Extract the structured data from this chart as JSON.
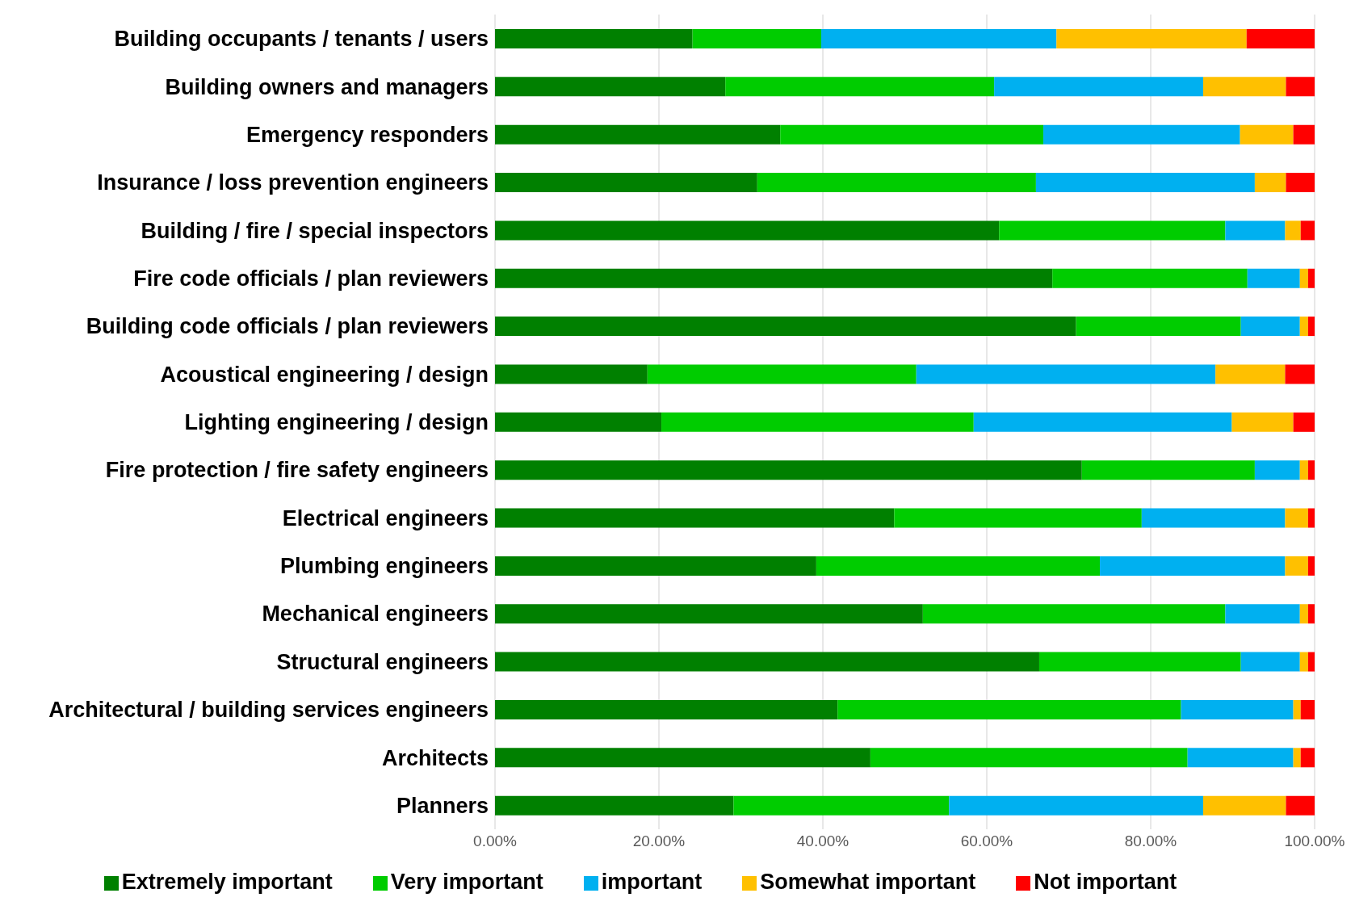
{
  "chart_data": {
    "type": "bar",
    "orientation": "horizontal",
    "stacked": true,
    "grid": "x",
    "legend": "bottom",
    "categories": [
      "Building occupants / tenants / users",
      "Building owners and managers",
      "Emergency responders",
      "Insurance / loss prevention engineers",
      "Building / fire / special inspectors",
      "Fire code officials / plan reviewers",
      "Building code officials / plan reviewers",
      "Acoustical engineering / design",
      "Lighting engineering / design",
      "Fire protection / fire safety engineers",
      "Electrical engineers",
      "Plumbing engineers",
      "Mechanical engineers",
      "Structural engineers",
      "Architectural / building services engineers",
      "Architects",
      "Planners"
    ],
    "xlim": [
      0,
      100
    ],
    "xticks": [
      {
        "value": 0,
        "label": "0.00%"
      },
      {
        "value": 20,
        "label": "20.00%"
      },
      {
        "value": 40,
        "label": "40.00%"
      },
      {
        "value": 60,
        "label": "60.00%"
      },
      {
        "value": 80,
        "label": "80.00%"
      },
      {
        "value": 100,
        "label": "100.00%"
      }
    ],
    "series": [
      {
        "name": "Extremely important",
        "color": "#008000",
        "values": [
          24.1,
          28.1,
          34.8,
          32.0,
          61.5,
          68.0,
          70.9,
          18.6,
          20.3,
          71.6,
          48.7,
          39.2,
          52.2,
          66.4,
          41.8,
          45.8,
          29.1
        ]
      },
      {
        "name": "Very important",
        "color": "#00cc00",
        "values": [
          15.7,
          32.8,
          32.1,
          34.0,
          27.6,
          23.8,
          20.1,
          32.8,
          38.1,
          21.1,
          30.2,
          34.6,
          36.9,
          24.6,
          41.9,
          38.7,
          26.3
        ]
      },
      {
        "name": "important",
        "color": "#00b0f0",
        "values": [
          28.7,
          25.5,
          24.0,
          26.7,
          7.3,
          6.4,
          7.2,
          36.5,
          31.5,
          5.5,
          17.5,
          22.6,
          9.1,
          7.2,
          13.7,
          12.9,
          31.0
        ]
      },
      {
        "name": "Somewhat important",
        "color": "#ffc000",
        "values": [
          23.2,
          10.1,
          6.5,
          3.8,
          1.9,
          1.0,
          1.0,
          8.5,
          7.5,
          1.0,
          2.8,
          2.8,
          1.0,
          1.0,
          0.9,
          0.9,
          10.1
        ]
      },
      {
        "name": "Not important",
        "color": "#ff0000",
        "values": [
          8.3,
          3.5,
          2.6,
          3.5,
          1.7,
          0.8,
          0.8,
          3.6,
          2.6,
          0.8,
          0.8,
          0.8,
          0.8,
          0.8,
          1.7,
          1.7,
          3.5
        ]
      }
    ]
  }
}
